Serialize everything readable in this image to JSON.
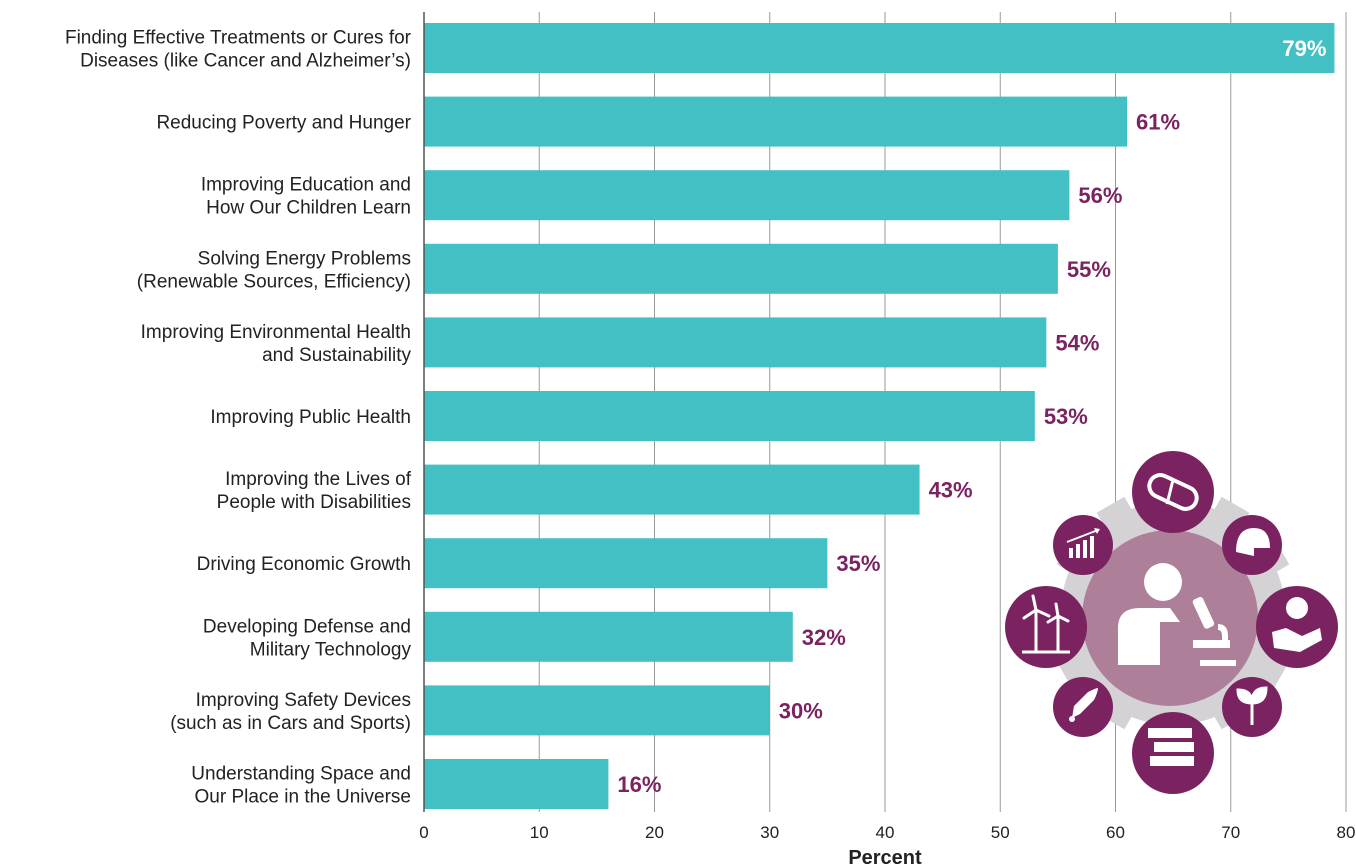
{
  "chart_data": {
    "type": "bar",
    "orientation": "horizontal",
    "categories": [
      [
        "Finding Effective Treatments or Cures for",
        "Diseases (like Cancer and Alzheimer’s)"
      ],
      [
        "Reducing Poverty and Hunger"
      ],
      [
        "Improving Education and",
        "How Our Children Learn"
      ],
      [
        "Solving Energy Problems",
        "(Renewable Sources, Efficiency)"
      ],
      [
        "Improving Environmental Health",
        "and Sustainability"
      ],
      [
        "Improving Public Health"
      ],
      [
        "Improving the Lives of",
        "People with Disabilities"
      ],
      [
        "Driving Economic Growth"
      ],
      [
        "Developing Defense and",
        "Military Technology"
      ],
      [
        "Improving Safety Devices",
        "(such as in Cars and Sports)"
      ],
      [
        "Understanding Space and",
        "Our Place in the Universe"
      ]
    ],
    "values": [
      79,
      61,
      56,
      55,
      54,
      53,
      43,
      35,
      32,
      30,
      16
    ],
    "value_labels": [
      "79%",
      "61%",
      "56%",
      "55%",
      "54%",
      "53%",
      "43%",
      "35%",
      "32%",
      "30%",
      "16%"
    ],
    "xlabel": "Percent",
    "ylabel": "",
    "title": "",
    "xlim": [
      0,
      80
    ],
    "xticks": [
      0,
      10,
      20,
      30,
      40,
      50,
      60,
      70,
      80
    ],
    "grid": "vertical",
    "legend": "none",
    "colors": {
      "bar": "#43c0c4",
      "value_label": "#7b2360",
      "value_label_inside": "#ffffff",
      "grid": "#9a9a9a",
      "icon_circle": "#7b2360",
      "icon_center": "#ad7f99",
      "icon_gear": "#d4d2d4"
    }
  },
  "illustration": {
    "center_icon": "scientist-with-microscope-icon",
    "icons": [
      "pills-icon",
      "helmet-icon",
      "apple-in-hand-icon",
      "sprout-icon",
      "books-icon",
      "rocket-icon",
      "wind-turbines-icon",
      "growth-chart-icon"
    ]
  }
}
